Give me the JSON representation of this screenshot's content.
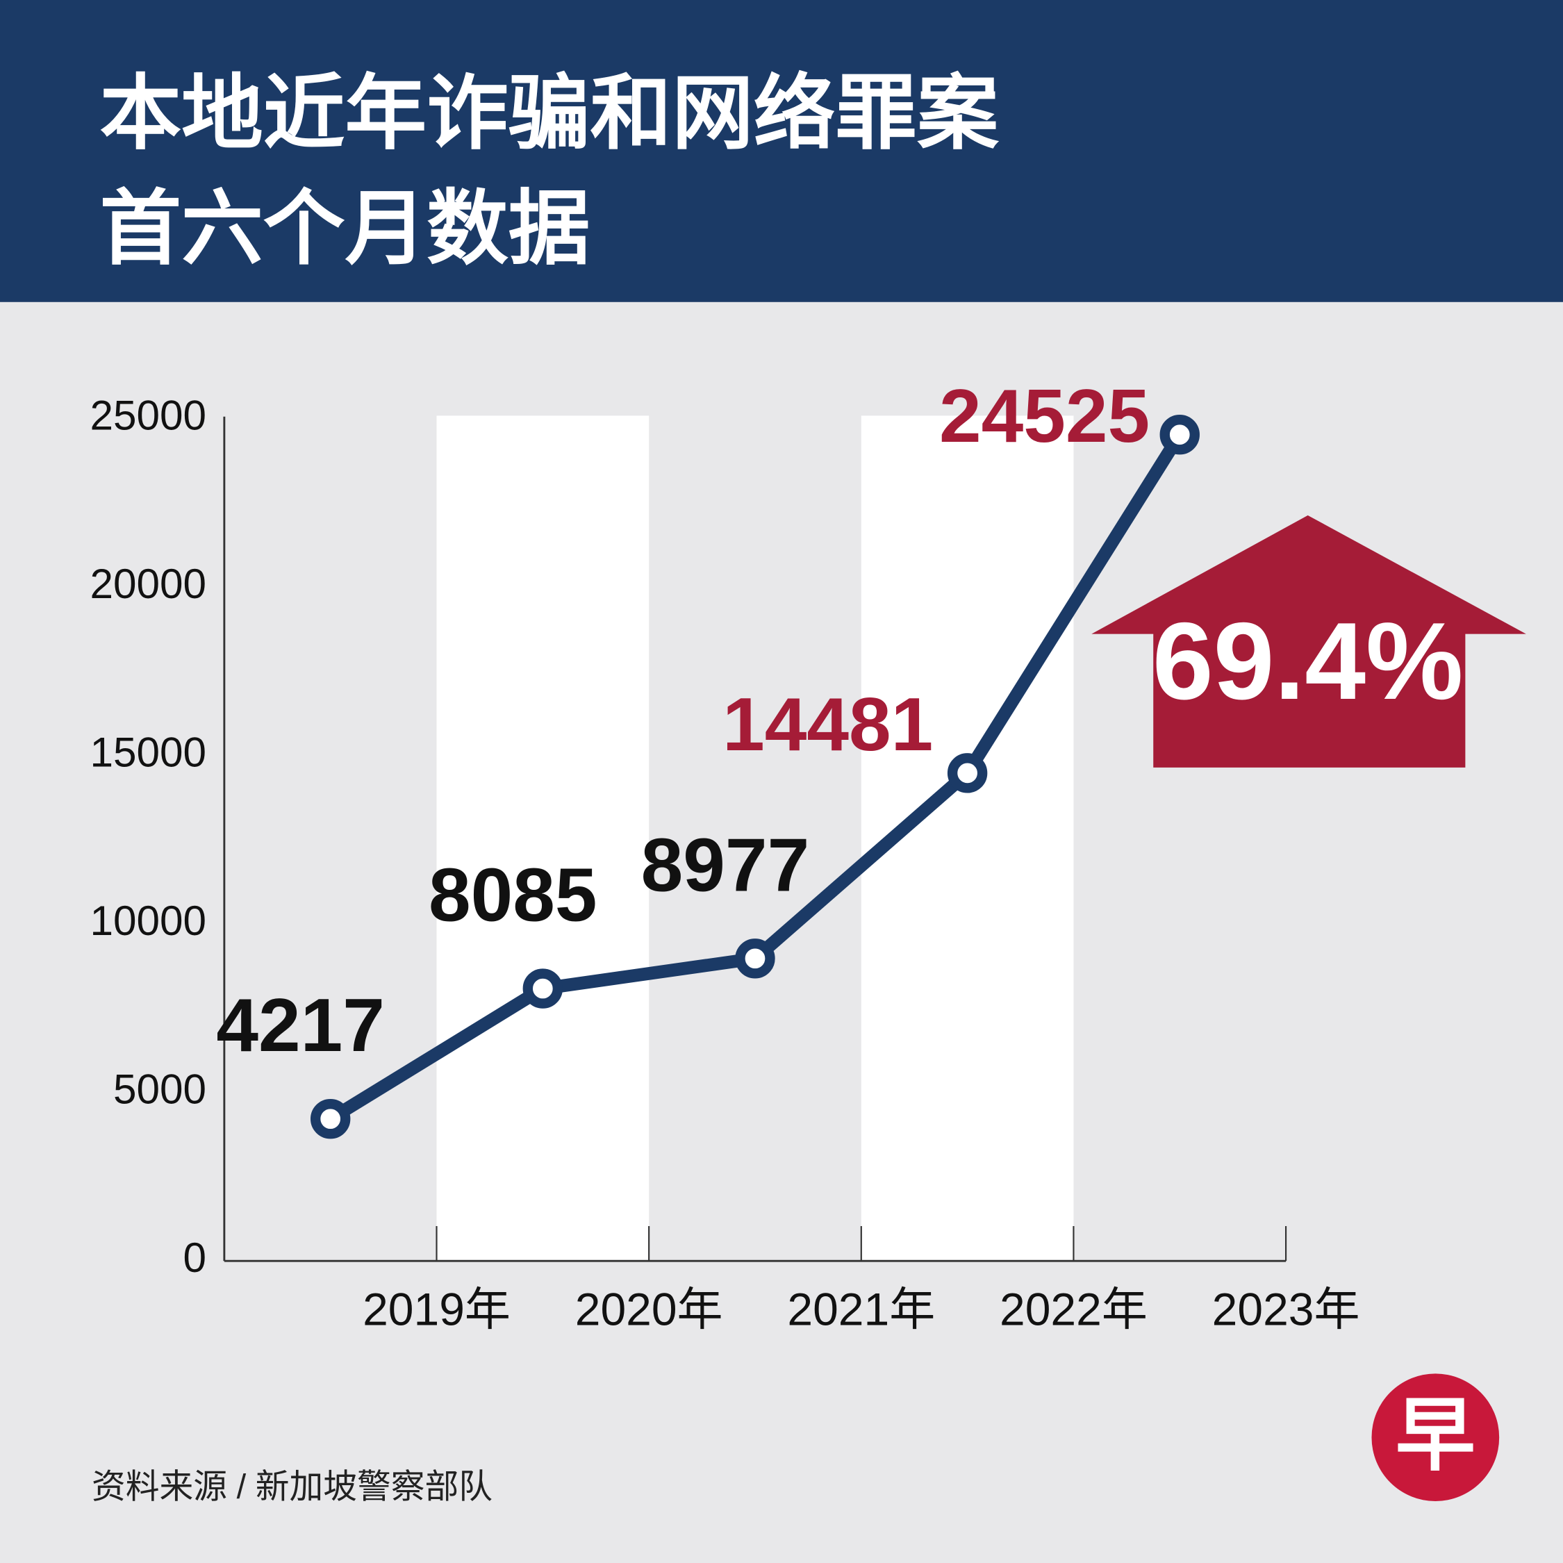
{
  "chart_data": {
    "type": "line",
    "title_lines": [
      "本地近年诈骗和网络罪案",
      "首六个月数据"
    ],
    "categories": [
      "2019年",
      "2020年",
      "2021年",
      "2022年",
      "2023年"
    ],
    "series": [
      {
        "color": "#1b3a66",
        "values": [
          4217,
          8085,
          8977,
          14481,
          24525
        ]
      }
    ],
    "value_label_colors": [
      "#111111",
      "#111111",
      "#111111",
      "#a51c37",
      "#a51c37"
    ],
    "ylim": [
      0,
      25000
    ],
    "yticks": [
      0,
      5000,
      10000,
      15000,
      20000,
      25000
    ],
    "annotation": "69.4%",
    "annotation_color": "#a51c37",
    "source": "资料来源 / 新加坡警察部队",
    "logo": "早"
  }
}
